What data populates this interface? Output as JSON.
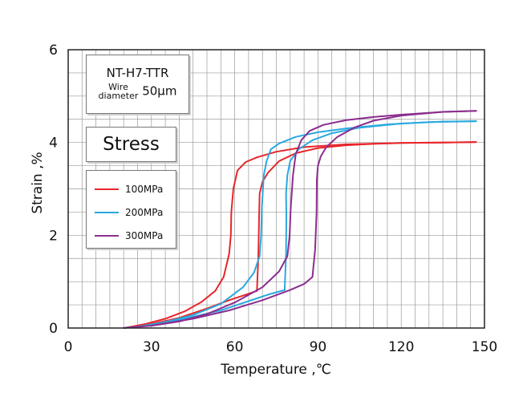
{
  "chart_data": {
    "type": "line",
    "xlabel": "Temperature ,℃",
    "ylabel": "Strain ,%",
    "xlim": [
      0,
      150
    ],
    "ylim": [
      0,
      6
    ],
    "xticks": [
      0,
      30,
      60,
      90,
      120,
      150
    ],
    "yticks": [
      0,
      2,
      4,
      6
    ],
    "grid": true,
    "material": "NT-H7-TTR",
    "wire_label_top": "Wire",
    "wire_label_bottom": "diameter",
    "wire_diameter": "50μm",
    "legend_title": "Stress",
    "legend_position": "left",
    "series": [
      {
        "name": "100MPa",
        "color": "#e8262b",
        "heating": [
          [
            68,
            0.8
          ],
          [
            68.5,
            1.5
          ],
          [
            68.8,
            2.4
          ],
          [
            69,
            2.9
          ],
          [
            70,
            3.15
          ],
          [
            72,
            3.35
          ],
          [
            76,
            3.6
          ],
          [
            82,
            3.77
          ],
          [
            90,
            3.88
          ],
          [
            100,
            3.94
          ],
          [
            110,
            3.97
          ],
          [
            120,
            3.99
          ],
          [
            135,
            4.0
          ],
          [
            147,
            4.01
          ]
        ],
        "cooling": [
          [
            147,
            4.01
          ],
          [
            135,
            4.0
          ],
          [
            120,
            3.99
          ],
          [
            100,
            3.96
          ],
          [
            85,
            3.9
          ],
          [
            75,
            3.8
          ],
          [
            68,
            3.68
          ],
          [
            64,
            3.58
          ],
          [
            61,
            3.4
          ],
          [
            59.5,
            3.0
          ],
          [
            58.8,
            2.5
          ],
          [
            58.6,
            2.0
          ],
          [
            58,
            1.6
          ],
          [
            56,
            1.1
          ],
          [
            53,
            0.8
          ],
          [
            48,
            0.56
          ],
          [
            42,
            0.36
          ],
          [
            35,
            0.2
          ],
          [
            28,
            0.09
          ],
          [
            22,
            0.02
          ],
          [
            20,
            0
          ]
        ],
        "tail": [
          [
            28,
            0.06
          ],
          [
            40,
            0.22
          ],
          [
            50,
            0.42
          ],
          [
            58,
            0.6
          ],
          [
            64,
            0.72
          ],
          [
            68,
            0.8
          ]
        ]
      },
      {
        "name": "200MPa",
        "color": "#2aa9e0",
        "heating": [
          [
            78,
            0.82
          ],
          [
            78.5,
            1.6
          ],
          [
            78.6,
            2.4
          ],
          [
            78.5,
            2.9
          ],
          [
            79,
            3.3
          ],
          [
            80,
            3.6
          ],
          [
            83,
            3.85
          ],
          [
            88,
            4.05
          ],
          [
            95,
            4.2
          ],
          [
            105,
            4.32
          ],
          [
            120,
            4.41
          ],
          [
            135,
            4.45
          ],
          [
            147,
            4.46
          ]
        ],
        "cooling": [
          [
            147,
            4.46
          ],
          [
            130,
            4.44
          ],
          [
            115,
            4.39
          ],
          [
            100,
            4.3
          ],
          [
            90,
            4.22
          ],
          [
            82,
            4.12
          ],
          [
            76,
            3.98
          ],
          [
            73,
            3.85
          ],
          [
            71.5,
            3.6
          ],
          [
            70.5,
            3.3
          ],
          [
            69.8,
            2.6
          ],
          [
            69.5,
            2.0
          ],
          [
            69,
            1.55
          ],
          [
            67,
            1.2
          ],
          [
            63,
            0.88
          ],
          [
            55,
            0.52
          ],
          [
            45,
            0.28
          ],
          [
            35,
            0.13
          ],
          [
            25,
            0.03
          ],
          [
            20,
            0
          ]
        ],
        "tail": [
          [
            30,
            0.06
          ],
          [
            42,
            0.2
          ],
          [
            55,
            0.38
          ],
          [
            65,
            0.58
          ],
          [
            72,
            0.72
          ],
          [
            78,
            0.82
          ]
        ]
      },
      {
        "name": "300MPa",
        "color": "#8b2d8f",
        "heating": [
          [
            88,
            1.1
          ],
          [
            89,
            1.7
          ],
          [
            89.5,
            2.5
          ],
          [
            89.6,
            3.2
          ],
          [
            90,
            3.5
          ],
          [
            91,
            3.7
          ],
          [
            93,
            3.9
          ],
          [
            97,
            4.12
          ],
          [
            103,
            4.32
          ],
          [
            110,
            4.47
          ],
          [
            120,
            4.58
          ],
          [
            135,
            4.66
          ],
          [
            147,
            4.68
          ]
        ],
        "cooling": [
          [
            147,
            4.68
          ],
          [
            135,
            4.66
          ],
          [
            120,
            4.6
          ],
          [
            110,
            4.55
          ],
          [
            100,
            4.48
          ],
          [
            92,
            4.38
          ],
          [
            87,
            4.25
          ],
          [
            84,
            4.05
          ],
          [
            82,
            3.75
          ],
          [
            81,
            3.3
          ],
          [
            80.2,
            2.6
          ],
          [
            79.8,
            2.0
          ],
          [
            79,
            1.55
          ],
          [
            76,
            1.22
          ],
          [
            70,
            0.88
          ],
          [
            60,
            0.55
          ],
          [
            50,
            0.3
          ],
          [
            40,
            0.14
          ],
          [
            30,
            0.05
          ],
          [
            22,
            0.01
          ],
          [
            20,
            0
          ]
        ],
        "tail": [
          [
            30,
            0.05
          ],
          [
            45,
            0.2
          ],
          [
            58,
            0.38
          ],
          [
            70,
            0.6
          ],
          [
            80,
            0.82
          ],
          [
            85,
            0.95
          ],
          [
            88,
            1.1
          ]
        ]
      }
    ]
  }
}
